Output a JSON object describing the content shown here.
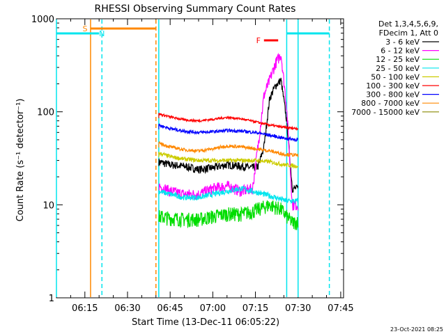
{
  "chart_data": {
    "type": "line",
    "title": "RHESSI Observing Summary Count Rates",
    "xlabel": "Start Time (13-Dec-11 06:05:22)",
    "ylabel": "Count Rate (s⁻¹ detector⁻¹)",
    "y_scale": "log",
    "ylim": [
      1,
      1000
    ],
    "xlim": [
      "06:05",
      "07:46"
    ],
    "x_ticks": [
      "06:15",
      "06:30",
      "06:45",
      "07:00",
      "07:15",
      "07:30",
      "07:45"
    ],
    "y_ticks": [
      "1",
      "10",
      "100",
      "1000"
    ],
    "grid": false,
    "legend_position": "right",
    "legend_header": [
      "Det 1,3,4,5,6,9,",
      "FDecim 1, Att 0"
    ],
    "footer_date": "23-Oct-2021 08:25",
    "series": [
      {
        "name": "3 - 6 keV",
        "color": "#000000",
        "x": [
          "06:41",
          "06:45",
          "06:50",
          "06:55",
          "07:00",
          "07:05",
          "07:10",
          "07:14",
          "07:16",
          "07:18",
          "07:20",
          "07:22",
          "07:24",
          "07:26",
          "07:28",
          "07:30"
        ],
        "values": [
          29,
          27,
          26,
          24,
          25,
          27,
          26,
          25,
          26,
          42,
          140,
          190,
          220,
          80,
          15,
          15
        ]
      },
      {
        "name": "6 - 12 keV",
        "color": "#ff00ff",
        "x": [
          "06:41",
          "06:45",
          "06:50",
          "06:55",
          "07:00",
          "07:05",
          "07:10",
          "07:14",
          "07:16",
          "07:18",
          "07:20",
          "07:22",
          "07:24",
          "07:26",
          "07:28",
          "07:30"
        ],
        "values": [
          16,
          14,
          13,
          13,
          15,
          16,
          14,
          15,
          45,
          150,
          220,
          330,
          420,
          110,
          10,
          10
        ]
      },
      {
        "name": "12 - 25 keV",
        "color": "#00dd00",
        "x": [
          "06:41",
          "06:45",
          "06:50",
          "06:55",
          "07:00",
          "07:05",
          "07:10",
          "07:14",
          "07:16",
          "07:18",
          "07:20",
          "07:22",
          "07:24",
          "07:26",
          "07:28",
          "07:30"
        ],
        "values": [
          7.5,
          7.2,
          7.0,
          7.0,
          7.5,
          8.0,
          8.0,
          8.5,
          9.0,
          9.5,
          10,
          9.5,
          9.0,
          7.5,
          6.5,
          6.5
        ]
      },
      {
        "name": "25 - 50 keV",
        "color": "#00e5ee",
        "x": [
          "06:41",
          "06:45",
          "06:50",
          "06:55",
          "07:00",
          "07:05",
          "07:10",
          "07:14",
          "07:18",
          "07:22",
          "07:26",
          "07:30"
        ],
        "values": [
          14,
          13,
          12,
          12,
          13,
          14,
          15,
          14,
          13,
          12,
          11,
          11
        ]
      },
      {
        "name": "50 - 100 keV",
        "color": "#cccc00",
        "x": [
          "06:41",
          "06:45",
          "06:50",
          "06:55",
          "07:00",
          "07:05",
          "07:10",
          "07:15",
          "07:20",
          "07:25",
          "07:30"
        ],
        "values": [
          36,
          33,
          31,
          30,
          30,
          30,
          30,
          30,
          29,
          27,
          26
        ]
      },
      {
        "name": "100 - 300 keV",
        "color": "#ff0000",
        "x": [
          "06:41",
          "06:45",
          "06:50",
          "06:55",
          "07:00",
          "07:05",
          "07:10",
          "07:15",
          "07:20",
          "07:25",
          "07:30"
        ],
        "values": [
          95,
          88,
          82,
          80,
          83,
          87,
          84,
          78,
          72,
          68,
          66
        ]
      },
      {
        "name": "300 - 800 keV",
        "color": "#0000ff",
        "x": [
          "06:41",
          "06:45",
          "06:50",
          "06:55",
          "07:00",
          "07:05",
          "07:10",
          "07:15",
          "07:20",
          "07:25",
          "07:30"
        ],
        "values": [
          72,
          66,
          62,
          60,
          61,
          63,
          62,
          60,
          56,
          52,
          50
        ]
      },
      {
        "name": "800 - 7000 keV",
        "color": "#ff8800",
        "x": [
          "06:41",
          "06:45",
          "06:50",
          "06:55",
          "07:00",
          "07:05",
          "07:10",
          "07:15",
          "07:20",
          "07:25",
          "07:30"
        ],
        "values": [
          46,
          42,
          39,
          38,
          40,
          43,
          42,
          40,
          38,
          35,
          34
        ]
      },
      {
        "name": "7000 - 15000 keV",
        "color": "#888800",
        "x": [],
        "values": []
      }
    ],
    "annotations": [
      {
        "label": "S",
        "color": "#ff8800",
        "x_start": "06:17",
        "x_end": "06:40"
      },
      {
        "label": "N",
        "color": "#00e5ee",
        "x_start": "06:05",
        "x_end": "06:20"
      },
      {
        "label": "F",
        "color": "#ff0000",
        "x_start": "07:18",
        "x_end": "07:23"
      }
    ],
    "vertical_markers": [
      {
        "x": "06:05",
        "color": "#00e5ee",
        "style": "solid"
      },
      {
        "x": "06:17",
        "color": "#ff8800",
        "style": "solid"
      },
      {
        "x": "06:21",
        "color": "#00e5ee",
        "style": "dashed"
      },
      {
        "x": "06:40",
        "color": "#ff8800",
        "style": "dashed"
      },
      {
        "x": "06:41",
        "color": "#00e5ee",
        "style": "solid"
      },
      {
        "x": "07:26",
        "color": "#00e5ee",
        "style": "solid"
      },
      {
        "x": "07:30",
        "color": "#00e5ee",
        "style": "solid"
      },
      {
        "x": "07:41",
        "color": "#00e5ee",
        "style": "dashed"
      }
    ],
    "night_bars": [
      {
        "color": "#00e5ee",
        "x_start": "06:05",
        "x_end": "06:20"
      },
      {
        "color": "#00e5ee",
        "x_start": "07:26",
        "x_end": "07:41"
      }
    ]
  }
}
